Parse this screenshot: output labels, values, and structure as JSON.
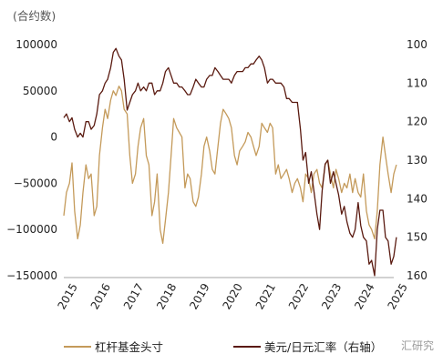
{
  "chart_data": {
    "type": "line",
    "unit_label": "(合约数)",
    "x_tick_labels": [
      "2015",
      "2016",
      "2017",
      "2018",
      "2019",
      "2020",
      "2021",
      "2022",
      "2023",
      "2024",
      "2025"
    ],
    "left_axis": {
      "ticks": [
        100000,
        50000,
        0,
        -50000,
        -100000,
        -150000
      ],
      "tick_labels": [
        "100000",
        "50000",
        "0",
        "−50000",
        "−100000",
        "−150000"
      ],
      "ylim": [
        -150000,
        100000
      ]
    },
    "right_axis": {
      "ticks": [
        100,
        110,
        120,
        130,
        140,
        150,
        160
      ],
      "tick_labels": [
        "100",
        "110",
        "120",
        "130",
        "140",
        "150",
        "160"
      ],
      "ylim": [
        160,
        100
      ],
      "inverted": true,
      "note": "右轴"
    },
    "series": [
      {
        "name": "杠杆基金头寸",
        "axis": "left",
        "color": "#c49a5a",
        "points": [
          [
            2015.0,
            -85000
          ],
          [
            2015.08,
            -60000
          ],
          [
            2015.17,
            -50000
          ],
          [
            2015.25,
            -28000
          ],
          [
            2015.33,
            -80000
          ],
          [
            2015.42,
            -110000
          ],
          [
            2015.5,
            -95000
          ],
          [
            2015.58,
            -60000
          ],
          [
            2015.67,
            -30000
          ],
          [
            2015.75,
            -45000
          ],
          [
            2015.83,
            -40000
          ],
          [
            2015.92,
            -85000
          ],
          [
            2016.0,
            -75000
          ],
          [
            2016.08,
            -20000
          ],
          [
            2016.17,
            10000
          ],
          [
            2016.25,
            30000
          ],
          [
            2016.33,
            20000
          ],
          [
            2016.42,
            40000
          ],
          [
            2016.5,
            50000
          ],
          [
            2016.58,
            45000
          ],
          [
            2016.67,
            55000
          ],
          [
            2016.75,
            50000
          ],
          [
            2016.83,
            30000
          ],
          [
            2016.92,
            25000
          ],
          [
            2017.0,
            -20000
          ],
          [
            2017.08,
            -50000
          ],
          [
            2017.17,
            -40000
          ],
          [
            2017.25,
            -10000
          ],
          [
            2017.33,
            10000
          ],
          [
            2017.42,
            20000
          ],
          [
            2017.5,
            -20000
          ],
          [
            2017.58,
            -30000
          ],
          [
            2017.67,
            -85000
          ],
          [
            2017.75,
            -70000
          ],
          [
            2017.83,
            -40000
          ],
          [
            2017.92,
            -100000
          ],
          [
            2018.0,
            -115000
          ],
          [
            2018.08,
            -90000
          ],
          [
            2018.17,
            -60000
          ],
          [
            2018.25,
            -20000
          ],
          [
            2018.33,
            20000
          ],
          [
            2018.42,
            10000
          ],
          [
            2018.5,
            5000
          ],
          [
            2018.58,
            0
          ],
          [
            2018.67,
            -55000
          ],
          [
            2018.75,
            -40000
          ],
          [
            2018.83,
            -45000
          ],
          [
            2018.92,
            -70000
          ],
          [
            2019.0,
            -75000
          ],
          [
            2019.08,
            -65000
          ],
          [
            2019.17,
            -40000
          ],
          [
            2019.25,
            -10000
          ],
          [
            2019.33,
            0
          ],
          [
            2019.42,
            -15000
          ],
          [
            2019.5,
            -35000
          ],
          [
            2019.58,
            -40000
          ],
          [
            2019.67,
            -10000
          ],
          [
            2019.75,
            15000
          ],
          [
            2019.83,
            30000
          ],
          [
            2019.92,
            25000
          ],
          [
            2020.0,
            20000
          ],
          [
            2020.08,
            10000
          ],
          [
            2020.17,
            -20000
          ],
          [
            2020.25,
            -30000
          ],
          [
            2020.33,
            -15000
          ],
          [
            2020.42,
            -10000
          ],
          [
            2020.5,
            -5000
          ],
          [
            2020.58,
            5000
          ],
          [
            2020.67,
            0
          ],
          [
            2020.75,
            -10000
          ],
          [
            2020.83,
            -20000
          ],
          [
            2020.92,
            -10000
          ],
          [
            2021.0,
            15000
          ],
          [
            2021.08,
            10000
          ],
          [
            2021.17,
            5000
          ],
          [
            2021.25,
            15000
          ],
          [
            2021.33,
            10000
          ],
          [
            2021.42,
            -40000
          ],
          [
            2021.5,
            -30000
          ],
          [
            2021.58,
            -45000
          ],
          [
            2021.67,
            -40000
          ],
          [
            2021.75,
            -35000
          ],
          [
            2021.83,
            -45000
          ],
          [
            2021.92,
            -60000
          ],
          [
            2022.0,
            -50000
          ],
          [
            2022.08,
            -45000
          ],
          [
            2022.17,
            -55000
          ],
          [
            2022.25,
            -70000
          ],
          [
            2022.33,
            -40000
          ],
          [
            2022.42,
            -45000
          ],
          [
            2022.5,
            -60000
          ],
          [
            2022.58,
            -40000
          ],
          [
            2022.67,
            -35000
          ],
          [
            2022.75,
            -50000
          ],
          [
            2022.83,
            -55000
          ],
          [
            2022.92,
            -30000
          ],
          [
            2023.0,
            -25000
          ],
          [
            2023.08,
            -40000
          ],
          [
            2023.17,
            -55000
          ],
          [
            2023.25,
            -35000
          ],
          [
            2023.33,
            -45000
          ],
          [
            2023.42,
            -60000
          ],
          [
            2023.5,
            -50000
          ],
          [
            2023.58,
            -55000
          ],
          [
            2023.67,
            -40000
          ],
          [
            2023.75,
            -60000
          ],
          [
            2023.83,
            -45000
          ],
          [
            2023.92,
            -60000
          ],
          [
            2024.0,
            -65000
          ],
          [
            2024.08,
            -40000
          ],
          [
            2024.17,
            -80000
          ],
          [
            2024.25,
            -95000
          ],
          [
            2024.33,
            -100000
          ],
          [
            2024.42,
            -110000
          ],
          [
            2024.5,
            -80000
          ],
          [
            2024.58,
            -30000
          ],
          [
            2024.67,
            0
          ],
          [
            2024.75,
            -20000
          ],
          [
            2024.83,
            -40000
          ],
          [
            2024.92,
            -60000
          ],
          [
            2025.0,
            -40000
          ],
          [
            2025.08,
            -30000
          ]
        ]
      },
      {
        "name": "美元/日元汇率（右轴）",
        "axis": "right",
        "color": "#5a1a10",
        "points": [
          [
            2015.0,
            119
          ],
          [
            2015.08,
            118
          ],
          [
            2015.17,
            120
          ],
          [
            2015.25,
            119
          ],
          [
            2015.33,
            122
          ],
          [
            2015.42,
            124
          ],
          [
            2015.5,
            123
          ],
          [
            2015.58,
            124
          ],
          [
            2015.67,
            120
          ],
          [
            2015.75,
            120
          ],
          [
            2015.83,
            122
          ],
          [
            2015.92,
            121
          ],
          [
            2016.0,
            118
          ],
          [
            2016.08,
            113
          ],
          [
            2016.17,
            112
          ],
          [
            2016.25,
            110
          ],
          [
            2016.33,
            109
          ],
          [
            2016.42,
            106
          ],
          [
            2016.5,
            102
          ],
          [
            2016.58,
            101
          ],
          [
            2016.67,
            103
          ],
          [
            2016.75,
            104
          ],
          [
            2016.83,
            109
          ],
          [
            2016.92,
            117
          ],
          [
            2017.0,
            115
          ],
          [
            2017.08,
            113
          ],
          [
            2017.17,
            112
          ],
          [
            2017.25,
            110
          ],
          [
            2017.33,
            112
          ],
          [
            2017.42,
            111
          ],
          [
            2017.5,
            112
          ],
          [
            2017.58,
            110
          ],
          [
            2017.67,
            110
          ],
          [
            2017.75,
            113
          ],
          [
            2017.83,
            112
          ],
          [
            2017.92,
            112
          ],
          [
            2018.0,
            110
          ],
          [
            2018.08,
            107
          ],
          [
            2018.17,
            106
          ],
          [
            2018.25,
            108
          ],
          [
            2018.33,
            110
          ],
          [
            2018.42,
            110
          ],
          [
            2018.5,
            111
          ],
          [
            2018.58,
            111
          ],
          [
            2018.67,
            112
          ],
          [
            2018.75,
            113
          ],
          [
            2018.83,
            113
          ],
          [
            2018.92,
            111
          ],
          [
            2019.0,
            109
          ],
          [
            2019.08,
            110
          ],
          [
            2019.17,
            111
          ],
          [
            2019.25,
            111
          ],
          [
            2019.33,
            109
          ],
          [
            2019.42,
            108
          ],
          [
            2019.5,
            108
          ],
          [
            2019.58,
            106
          ],
          [
            2019.67,
            107
          ],
          [
            2019.75,
            108
          ],
          [
            2019.83,
            109
          ],
          [
            2019.92,
            109
          ],
          [
            2020.0,
            109
          ],
          [
            2020.08,
            110
          ],
          [
            2020.17,
            108
          ],
          [
            2020.25,
            107
          ],
          [
            2020.33,
            107
          ],
          [
            2020.42,
            107
          ],
          [
            2020.5,
            106
          ],
          [
            2020.58,
            106
          ],
          [
            2020.67,
            105
          ],
          [
            2020.75,
            105
          ],
          [
            2020.83,
            104
          ],
          [
            2020.92,
            103
          ],
          [
            2021.0,
            104
          ],
          [
            2021.08,
            106
          ],
          [
            2021.17,
            110
          ],
          [
            2021.25,
            109
          ],
          [
            2021.33,
            109
          ],
          [
            2021.42,
            110
          ],
          [
            2021.5,
            110
          ],
          [
            2021.58,
            110
          ],
          [
            2021.67,
            111
          ],
          [
            2021.75,
            114
          ],
          [
            2021.83,
            114
          ],
          [
            2021.92,
            115
          ],
          [
            2022.0,
            115
          ],
          [
            2022.08,
            115
          ],
          [
            2022.17,
            122
          ],
          [
            2022.25,
            130
          ],
          [
            2022.33,
            128
          ],
          [
            2022.42,
            136
          ],
          [
            2022.5,
            133
          ],
          [
            2022.58,
            138
          ],
          [
            2022.67,
            144
          ],
          [
            2022.75,
            148
          ],
          [
            2022.83,
            138
          ],
          [
            2022.92,
            131
          ],
          [
            2023.0,
            130
          ],
          [
            2023.08,
            136
          ],
          [
            2023.17,
            133
          ],
          [
            2023.25,
            136
          ],
          [
            2023.33,
            139
          ],
          [
            2023.42,
            144
          ],
          [
            2023.5,
            142
          ],
          [
            2023.58,
            146
          ],
          [
            2023.67,
            149
          ],
          [
            2023.75,
            150
          ],
          [
            2023.83,
            148
          ],
          [
            2023.92,
            141
          ],
          [
            2024.0,
            147
          ],
          [
            2024.08,
            150
          ],
          [
            2024.17,
            151
          ],
          [
            2024.25,
            157
          ],
          [
            2024.33,
            156
          ],
          [
            2024.42,
            160
          ],
          [
            2024.5,
            148
          ],
          [
            2024.58,
            143
          ],
          [
            2024.67,
            143
          ],
          [
            2024.75,
            150
          ],
          [
            2024.83,
            151
          ],
          [
            2024.92,
            157
          ],
          [
            2025.0,
            155
          ],
          [
            2025.08,
            150
          ]
        ]
      }
    ],
    "legend": [
      "杠杆基金头寸",
      "美元/日元汇率（右轴）"
    ],
    "legend_position": "bottom",
    "grid": false
  },
  "watermark": "汇研究"
}
